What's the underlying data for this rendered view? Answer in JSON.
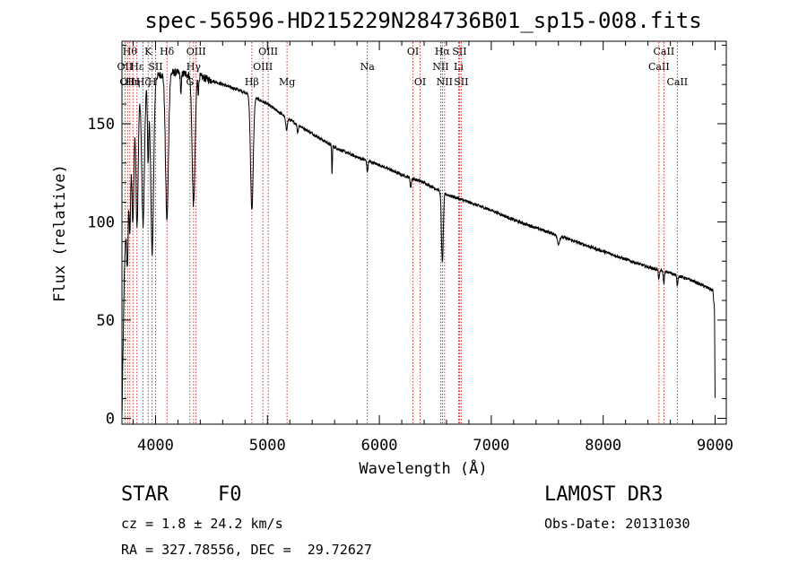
{
  "chart_data": {
    "type": "line",
    "title": "spec-56596-HD215229N284736B01_sp15-008.fits",
    "xlabel": "Wavelength (Å)",
    "ylabel": "Flux (relative)",
    "xlim": [
      3700,
      9100
    ],
    "ylim": [
      -3,
      192
    ],
    "xticks": [
      4000,
      5000,
      6000,
      7000,
      8000,
      9000
    ],
    "yticks": [
      0,
      50,
      100,
      150
    ],
    "xtick_labels": [
      "4000",
      "5000",
      "6000",
      "7000",
      "8000",
      "9000"
    ],
    "ytick_labels": [
      "0",
      "50",
      "100",
      "150"
    ],
    "continuum": {
      "x": [
        3700,
        3720,
        3760,
        3800,
        3850,
        3900,
        3950,
        4000,
        4100,
        4200,
        4300,
        4400,
        4500,
        4600,
        4700,
        4800,
        5000,
        5200,
        5400,
        5600,
        5800,
        6000,
        6200,
        6400,
        6600,
        6800,
        7000,
        7200,
        7400,
        7600,
        7800,
        8000,
        8200,
        8400,
        8600,
        8800,
        8950,
        8980,
        8995,
        9000
      ],
      "y": [
        0,
        70,
        150,
        160,
        165,
        170,
        172,
        174,
        176,
        176,
        175,
        174,
        172,
        170,
        168,
        166,
        160,
        152,
        145,
        138,
        133,
        129,
        124,
        120,
        114,
        110,
        106,
        101,
        97,
        93,
        89,
        85,
        81,
        77,
        74,
        70,
        66,
        65,
        55,
        8
      ]
    },
    "absorption_lines": [
      {
        "wave": 3750,
        "depth": 50,
        "width": 8
      },
      {
        "wave": 3771,
        "depth": 55,
        "width": 8
      },
      {
        "wave": 3798,
        "depth": 60,
        "width": 9
      },
      {
        "wave": 3835,
        "depth": 65,
        "width": 10
      },
      {
        "wave": 3889,
        "depth": 70,
        "width": 12
      },
      {
        "wave": 3934,
        "depth": 40,
        "width": 6
      },
      {
        "wave": 3970,
        "depth": 88,
        "width": 13
      },
      {
        "wave": 4102,
        "depth": 75,
        "width": 13
      },
      {
        "wave": 4227,
        "depth": 10,
        "width": 5
      },
      {
        "wave": 4340,
        "depth": 66,
        "width": 13
      },
      {
        "wave": 4383,
        "depth": 8,
        "width": 4
      },
      {
        "wave": 4861,
        "depth": 58,
        "width": 12
      },
      {
        "wave": 5170,
        "depth": 6,
        "width": 8
      },
      {
        "wave": 5270,
        "depth": 4,
        "width": 5
      },
      {
        "wave": 5577,
        "depth": 15,
        "width": 3
      },
      {
        "wave": 5893,
        "depth": 6,
        "width": 5
      },
      {
        "wave": 6280,
        "depth": 5,
        "width": 5
      },
      {
        "wave": 6563,
        "depth": 36,
        "width": 8
      },
      {
        "wave": 7600,
        "depth": 4,
        "width": 10
      },
      {
        "wave": 8498,
        "depth": 5,
        "width": 5
      },
      {
        "wave": 8542,
        "depth": 6,
        "width": 5
      },
      {
        "wave": 8662,
        "depth": 5,
        "width": 5
      }
    ],
    "line_markers": [
      {
        "wave": 3727,
        "label": "OII",
        "row": 2
      },
      {
        "wave": 3750,
        "label": "OII",
        "row": 3
      },
      {
        "wave": 3771,
        "label": "Hθ",
        "row": 1
      },
      {
        "wave": 3798,
        "label": "Hη",
        "row": 3
      },
      {
        "wave": 3835,
        "label": "Hε",
        "row": 2
      },
      {
        "wave": 3889,
        "label": "Hζ",
        "row": 3
      },
      {
        "wave": 3934,
        "label": "K",
        "row": 1
      },
      {
        "wave": 3970,
        "label": "H",
        "row": 3
      },
      {
        "wave": 4000,
        "label": "SII",
        "row": 2
      },
      {
        "wave": 4102,
        "label": "Hδ",
        "row": 1
      },
      {
        "wave": 4308,
        "label": "G",
        "row": 3
      },
      {
        "wave": 4340,
        "label": "Hγ",
        "row": 2
      },
      {
        "wave": 4363,
        "label": "OIII",
        "row": 1
      },
      {
        "wave": 4861,
        "label": "Hβ",
        "row": 3
      },
      {
        "wave": 4959,
        "label": "OIII",
        "row": 2
      },
      {
        "wave": 5007,
        "label": "OIII",
        "row": 1
      },
      {
        "wave": 5175,
        "label": "Mg",
        "row": 3
      },
      {
        "wave": 5893,
        "label": "Na",
        "row": 2
      },
      {
        "wave": 6300,
        "label": "OI",
        "row": 1
      },
      {
        "wave": 6364,
        "label": "OI",
        "row": 3
      },
      {
        "wave": 6548,
        "label": "NII",
        "row": 2
      },
      {
        "wave": 6563,
        "label": "Hα",
        "row": 1
      },
      {
        "wave": 6583,
        "label": "NII",
        "row": 3
      },
      {
        "wave": 6708,
        "label": "Li",
        "row": 2
      },
      {
        "wave": 6716,
        "label": "SII",
        "row": 1
      },
      {
        "wave": 6731,
        "label": "SII",
        "row": 3
      },
      {
        "wave": 8498,
        "label": "CaII",
        "row": 2
      },
      {
        "wave": 8542,
        "label": "CaII",
        "row": 1
      },
      {
        "wave": 8662,
        "label": "CaII",
        "row": 3
      }
    ],
    "colors": {
      "spectrum": "#000000",
      "marker": "#cc0000",
      "axis": "#000000"
    }
  },
  "info": {
    "object_class": "STAR",
    "subclass": "F0",
    "survey": "LAMOST DR3",
    "redshift": "cz = 1.8 ± 24.2 km/s",
    "obs_date": "Obs-Date: 20131030",
    "coords": "RA = 327.78556, DEC =  29.72627"
  }
}
